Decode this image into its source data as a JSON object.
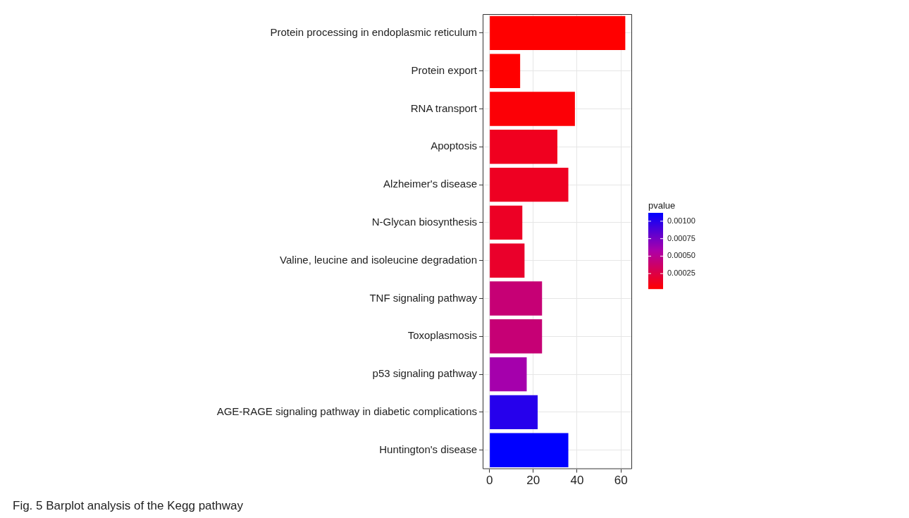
{
  "chart_data": {
    "type": "bar",
    "orientation": "horizontal",
    "categories": [
      "Protein processing in endoplasmic reticulum",
      "Protein export",
      "RNA transport",
      "Apoptosis",
      "Alzheimer's disease",
      "N-Glycan biosynthesis",
      "Valine, leucine and isoleucine degradation",
      "TNF signaling pathway",
      "Toxoplasmosis",
      "p53 signaling pathway",
      "AGE-RAGE signaling pathway in diabetic complications",
      "Huntington's disease"
    ],
    "values": [
      62,
      14,
      39,
      31,
      36,
      15,
      16,
      24,
      24,
      17,
      22,
      36
    ],
    "cvalues": [
      3e-05,
      3e-05,
      5e-05,
      0.00013,
      0.00014,
      0.00015,
      0.00017,
      0.00041,
      0.00041,
      0.0006,
      0.001,
      0.00112
    ],
    "xlim": [
      -3.1,
      65.1
    ],
    "xticks": [
      0,
      20,
      40,
      60
    ],
    "clabel": "pvalue",
    "clim": [
      3e-05,
      0.00112
    ],
    "cticks": [
      0.00025,
      {
        "value": 0.0005,
        "label": "0.00050"
      },
      0.00075,
      {
        "value": 0.001,
        "label": "0.00100"
      }
    ],
    "grid": true,
    "legend": false,
    "annotations": [
      "Fig. 5 Barplot analysis of the Kegg pathway"
    ]
  }
}
